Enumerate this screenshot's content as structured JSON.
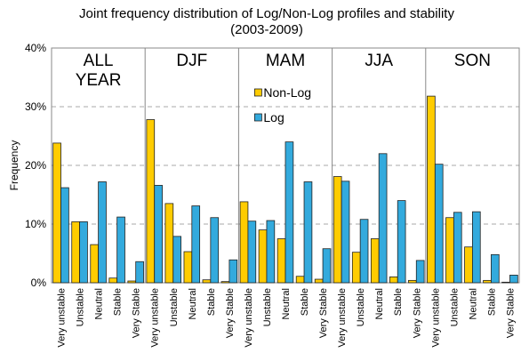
{
  "chart_data": {
    "type": "bar",
    "title": "Joint frequency distribution of Log/Non-Log profiles and stability",
    "subtitle": "(2003-2009)",
    "ylabel": "Frequency",
    "panels": [
      "ALL YEAR",
      "DJF",
      "MAM",
      "JJA",
      "SON"
    ],
    "categories": [
      "Very unstable",
      "Unstable",
      "Neutral",
      "Stable",
      "Very Stable"
    ],
    "series": [
      {
        "name": "Non-Log",
        "color": "#ffcc00",
        "values": [
          [
            23.8,
            10.4,
            6.5,
            0.8,
            0.3
          ],
          [
            27.8,
            13.5,
            5.3,
            0.5,
            0.2
          ],
          [
            13.8,
            9.0,
            7.5,
            1.1,
            0.6
          ],
          [
            18.1,
            5.2,
            7.5,
            1.0,
            0.4
          ],
          [
            31.8,
            11.1,
            6.1,
            0.4,
            0.1
          ]
        ]
      },
      {
        "name": "Log",
        "color": "#33aadd",
        "values": [
          [
            16.2,
            10.4,
            17.2,
            11.2,
            3.6
          ],
          [
            16.6,
            7.9,
            13.1,
            11.1,
            3.9
          ],
          [
            10.5,
            10.6,
            24.0,
            17.2,
            5.8
          ],
          [
            17.3,
            10.8,
            22.0,
            14.0,
            3.8
          ],
          [
            20.2,
            12.0,
            12.1,
            4.8,
            1.3
          ]
        ]
      }
    ],
    "ylim": [
      0,
      40
    ],
    "yticks": [
      {
        "value": 0,
        "label": "0%"
      },
      {
        "value": 10,
        "label": "10%"
      },
      {
        "value": 20,
        "label": "20%"
      },
      {
        "value": 30,
        "label": "30%"
      },
      {
        "value": 40,
        "label": "40%"
      }
    ],
    "grid": true
  }
}
